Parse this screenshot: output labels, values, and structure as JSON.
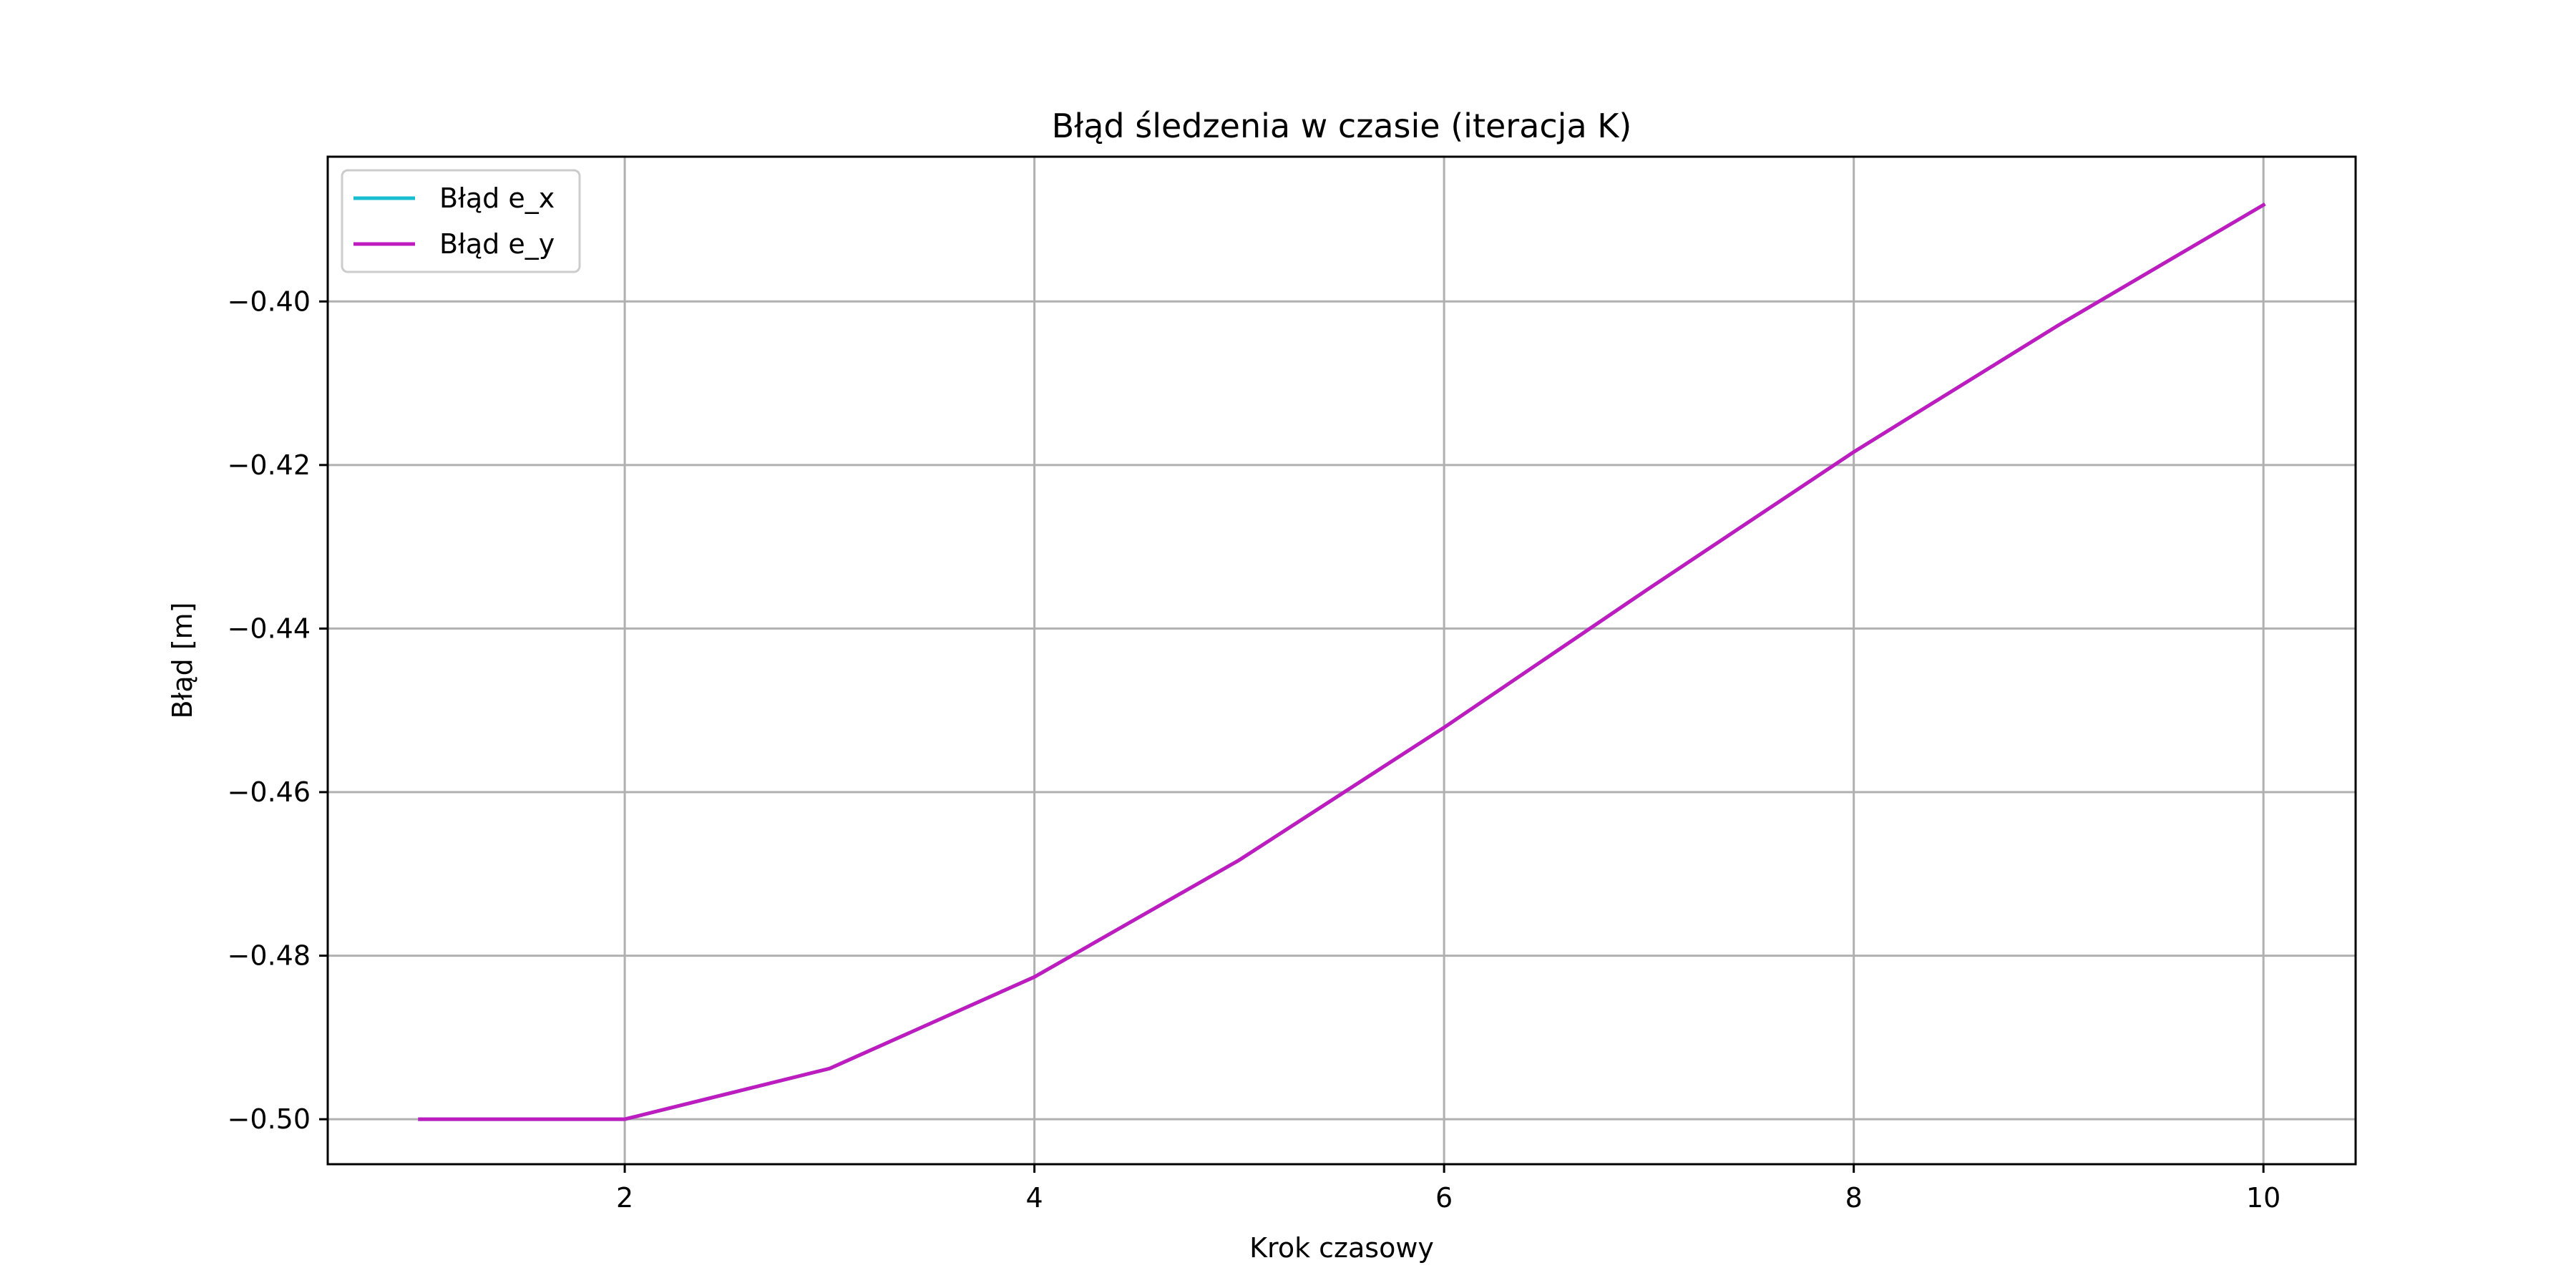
{
  "chart_data": {
    "type": "line",
    "title": "Błąd śledzenia w czasie (iteracja K)",
    "xlabel": "Krok czasowy",
    "ylabel": "Błąd [m]",
    "x": [
      1,
      2,
      3,
      4,
      5,
      6,
      7,
      8,
      9,
      10
    ],
    "xlim": [
      0.55,
      10.45
    ],
    "ylim": [
      -0.5055,
      -0.3823
    ],
    "xticks": [
      2,
      4,
      6,
      8,
      10
    ],
    "xtick_labels": [
      "2",
      "4",
      "6",
      "8",
      "10"
    ],
    "yticks": [
      -0.5,
      -0.48,
      -0.46,
      -0.44,
      -0.42,
      -0.4
    ],
    "ytick_labels": [
      "−0.50",
      "−0.48",
      "−0.46",
      "−0.44",
      "−0.42",
      "−0.40"
    ],
    "grid": true,
    "legend_position": "upper-left",
    "series": [
      {
        "name": "Błąd e_x",
        "color": "#17becf",
        "values": [
          -0.5,
          -0.5,
          -0.4938,
          -0.4826,
          -0.4683,
          -0.4521,
          -0.4351,
          -0.4184,
          -0.4029,
          -0.3882
        ]
      },
      {
        "name": "Błąd e_y",
        "color": "#bf1cbf",
        "values": [
          -0.5,
          -0.5,
          -0.4938,
          -0.4826,
          -0.4683,
          -0.4521,
          -0.4351,
          -0.4184,
          -0.4029,
          -0.3882
        ]
      }
    ]
  }
}
